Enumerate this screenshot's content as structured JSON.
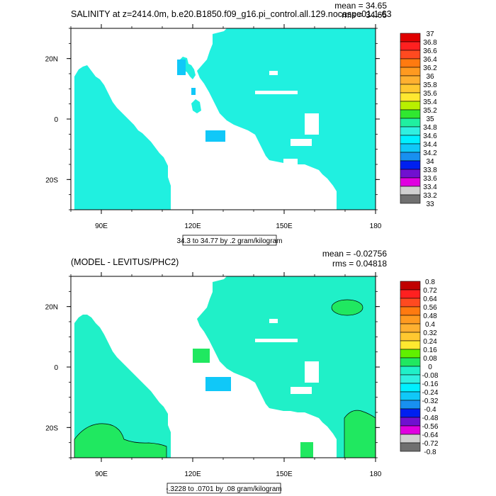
{
  "chart_data": [
    {
      "type": "heatmap",
      "title": "SALINITY at z=2414.0m, b.e20.B1850.f09_g16.pi_control.all.129.nocaspe01.1-63",
      "stats": {
        "mean": "mean = 34.65",
        "rms": "rms = 34.65"
      },
      "x_ticks": [
        "90E",
        "120E",
        "150E",
        "180"
      ],
      "y_ticks": [
        "20N",
        "0",
        "20S"
      ],
      "xlim": [
        80,
        180
      ],
      "ylim": [
        -30,
        30
      ],
      "range_label": "34.3 to 34.77 by .2 gram/kilogram",
      "colorbar": {
        "labels": [
          "37",
          "36.8",
          "36.6",
          "36.4",
          "36.2",
          "36",
          "35.8",
          "35.6",
          "35.4",
          "35.2",
          "35",
          "34.8",
          "34.6",
          "34.4",
          "34.2",
          "34",
          "33.8",
          "33.6",
          "33.4",
          "33.2",
          "33"
        ],
        "colors": [
          "#e00000",
          "#ff2020",
          "#ff4a20",
          "#ff7a10",
          "#ff9a20",
          "#ffb030",
          "#ffc830",
          "#ffe830",
          "#b8f000",
          "#30e830",
          "#20f0a0",
          "#30f0e0",
          "#00f0ff",
          "#10c8f8",
          "#1890f0",
          "#0020f0",
          "#7010d0",
          "#e000e0",
          "#d0d0d0",
          "#707070"
        ]
      }
    },
    {
      "type": "heatmap",
      "title": "(MODEL - LEVITUS/PHC2)",
      "stats": {
        "mean": "mean = -0.02756",
        "rms": "rms = 0.04818"
      },
      "x_ticks": [
        "90E",
        "120E",
        "150E",
        "180"
      ],
      "y_ticks": [
        "20N",
        "0",
        "20S"
      ],
      "xlim": [
        80,
        180
      ],
      "ylim": [
        -30,
        30
      ],
      "range_label": "-.3228 to .0701 by .08 gram/kilogram",
      "colorbar": {
        "labels": [
          "0.8",
          "0.72",
          "0.64",
          "0.56",
          "0.48",
          "0.4",
          "0.32",
          "0.24",
          "0.16",
          "0.08",
          "0",
          "-0.08",
          "-0.16",
          "-0.24",
          "-0.32",
          "-0.4",
          "-0.48",
          "-0.56",
          "-0.64",
          "-0.72",
          "-0.8"
        ],
        "colors": [
          "#c00000",
          "#ff2020",
          "#ff4a20",
          "#ff7a10",
          "#ff9a20",
          "#ffb030",
          "#ffc830",
          "#ffe830",
          "#60f000",
          "#20e860",
          "#20f0c8",
          "#30f0e0",
          "#00f0ff",
          "#10c8f8",
          "#1890f0",
          "#0020f0",
          "#7010d0",
          "#e000e0",
          "#d0d0d0",
          "#707070"
        ]
      }
    }
  ]
}
